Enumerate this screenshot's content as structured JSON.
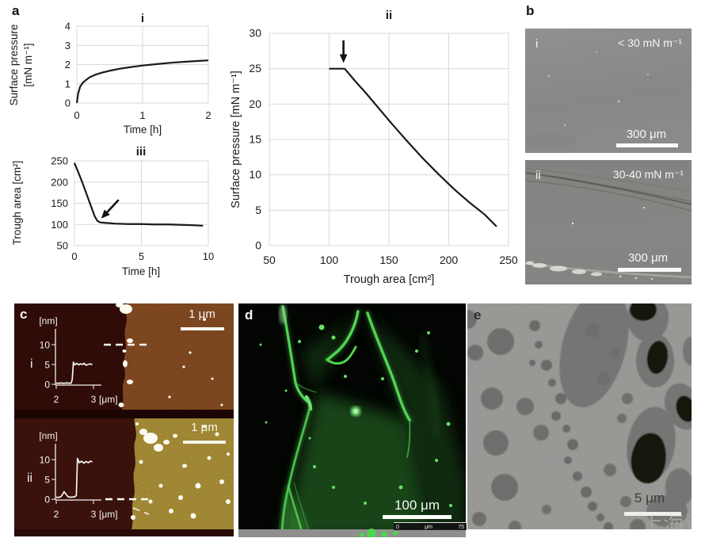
{
  "figure": {
    "panels": {
      "a": {
        "label": "a"
      },
      "b": {
        "label": "b",
        "images": [
          {
            "label": "i",
            "annotation": "< 30 mN m⁻¹",
            "scale_bar": "300 μm"
          },
          {
            "label": "ii",
            "annotation": "30-40 mN m⁻¹",
            "scale_bar": "300 μm"
          }
        ]
      },
      "c": {
        "label": "c",
        "images": [
          {
            "label": "i",
            "scale_bar": "1 μm"
          },
          {
            "label": "ii",
            "scale_bar": "1 μm"
          }
        ]
      },
      "d": {
        "label": "d",
        "scale_bar": "100 μm",
        "ruler": {
          "start": "0",
          "unit": "μm",
          "end": "75"
        }
      },
      "e": {
        "label": "e",
        "scale_bar": "5 μm",
        "watermark": "上海谓"
      }
    },
    "colors": {
      "afm_top": "#96501e",
      "afm_bottom": "#b9992f",
      "afm_substrate": "#2f0c07",
      "fluorescence_green": "#52d452",
      "sem_background": "#9c9c9a",
      "sem_domain": "#6e6e6c",
      "micrograph_gray": "#8a8a88"
    }
  },
  "chart_data": [
    {
      "id": "a-i",
      "type": "line",
      "title": "i",
      "xlabel": "Time [h]",
      "ylabel": "Surface pressure [mN m⁻¹]",
      "ylabel_lines": [
        "Surface pressure",
        "[mN m⁻¹]"
      ],
      "xlim": [
        0,
        2
      ],
      "ylim": [
        0,
        4
      ],
      "xticks": [
        0,
        1,
        2
      ],
      "yticks": [
        0,
        1,
        2,
        3,
        4
      ],
      "grid": true,
      "legend": "none",
      "x": [
        0,
        0.02,
        0.05,
        0.09,
        0.14,
        0.2,
        0.28,
        0.38,
        0.5,
        0.65,
        0.8,
        1.0,
        1.2,
        1.45,
        1.7,
        2.0
      ],
      "y": [
        0,
        0.5,
        0.85,
        1.05,
        1.2,
        1.35,
        1.47,
        1.58,
        1.68,
        1.78,
        1.86,
        1.95,
        2.02,
        2.1,
        2.16,
        2.22
      ]
    },
    {
      "id": "a-ii",
      "type": "line",
      "title": "ii",
      "xlabel": "Trough area [cm²]",
      "ylabel": "Surface pressure [mN m⁻¹]",
      "xlim": [
        50,
        250
      ],
      "ylim": [
        0,
        30
      ],
      "xticks": [
        50,
        100,
        150,
        200,
        250
      ],
      "yticks": [
        0,
        5,
        10,
        15,
        20,
        25,
        30
      ],
      "grid": true,
      "legend": "none",
      "x": [
        100,
        105,
        110,
        113,
        117,
        122,
        130,
        140,
        152,
        165,
        178,
        192,
        205,
        218,
        230,
        240
      ],
      "y": [
        25,
        25,
        25,
        25,
        24.2,
        23.2,
        21.7,
        19.7,
        17.3,
        14.8,
        12.4,
        10,
        7.9,
        6,
        4.4,
        2.7
      ],
      "arrow": {
        "from": [
          112,
          29
        ],
        "to": [
          112,
          25.8
        ]
      }
    },
    {
      "id": "a-iii",
      "type": "line",
      "title": "iii",
      "xlabel": "Time [h]",
      "ylabel": "Trough area [cm²]",
      "xlim": [
        0,
        10
      ],
      "ylim": [
        50,
        250
      ],
      "xticks": [
        0,
        5,
        10
      ],
      "yticks": [
        50,
        100,
        150,
        200,
        250
      ],
      "grid": true,
      "legend": "none",
      "x": [
        0,
        0.3,
        0.6,
        0.9,
        1.2,
        1.5,
        1.7,
        1.9,
        2.2,
        2.6,
        3,
        4,
        5,
        6,
        7,
        8,
        9,
        9.6
      ],
      "y": [
        245,
        222,
        198,
        172,
        146,
        120,
        109,
        105,
        104,
        103,
        102,
        101,
        101,
        100,
        100,
        99,
        98,
        97
      ],
      "arrow": {
        "from": [
          3.3,
          158
        ],
        "to": [
          2.0,
          114
        ]
      }
    },
    {
      "id": "c-i-height-profile",
      "type": "line",
      "xlabel": "[μm]",
      "ylabel": "[nm]",
      "xlim": [
        2,
        3
      ],
      "ylim": [
        0,
        14
      ],
      "xticks": [
        2,
        3
      ],
      "yticks": [
        0,
        5,
        10
      ],
      "grid": false,
      "legend": "none",
      "x": [
        2.0,
        2.06,
        2.12,
        2.18,
        2.24,
        2.3,
        2.36,
        2.4,
        2.43,
        2.46,
        2.5,
        2.55,
        2.6,
        2.65,
        2.7,
        2.75,
        2.8,
        2.85,
        2.9,
        2.97
      ],
      "y": [
        0.3,
        0.25,
        0.35,
        0.25,
        0.3,
        0.35,
        0.25,
        0.3,
        1.2,
        5.6,
        4.9,
        5.3,
        4.9,
        5.2,
        5.0,
        5.3,
        4.8,
        5.0,
        5.15,
        5.0
      ]
    },
    {
      "id": "c-ii-height-profile",
      "type": "line",
      "xlabel": "[μm]",
      "ylabel": "[nm]",
      "xlim": [
        2,
        3
      ],
      "ylim": [
        0,
        14
      ],
      "xticks": [
        2,
        3
      ],
      "yticks": [
        0,
        5,
        10
      ],
      "grid": false,
      "legend": "none",
      "x": [
        2.0,
        2.06,
        2.12,
        2.17,
        2.21,
        2.26,
        2.32,
        2.38,
        2.44,
        2.5,
        2.54,
        2.57,
        2.62,
        2.68,
        2.74,
        2.8,
        2.86,
        2.92,
        2.97
      ],
      "y": [
        0.5,
        0.45,
        0.6,
        1.2,
        1.9,
        1.3,
        0.6,
        0.5,
        0.55,
        0.6,
        1.0,
        10.3,
        9.2,
        9.6,
        9.1,
        9.5,
        9.2,
        9.6,
        9.4
      ]
    }
  ]
}
